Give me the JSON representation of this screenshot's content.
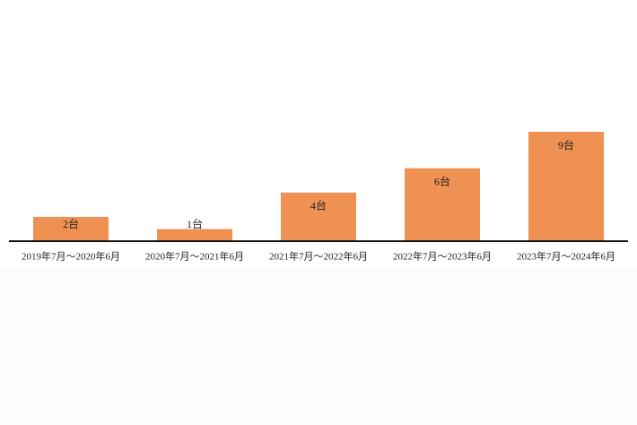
{
  "chart_data": {
    "type": "bar",
    "categories": [
      "2019年7月～2020年6月",
      "2020年7月～2021年6月",
      "2021年7月～2022年6月",
      "2022年7月～2023年6月",
      "2023年7月～2024年6月"
    ],
    "values": [
      2,
      1,
      4,
      6,
      9
    ],
    "value_labels": [
      "2台",
      "1台",
      "4台",
      "6台",
      "9台"
    ],
    "color": "#ef9152"
  }
}
